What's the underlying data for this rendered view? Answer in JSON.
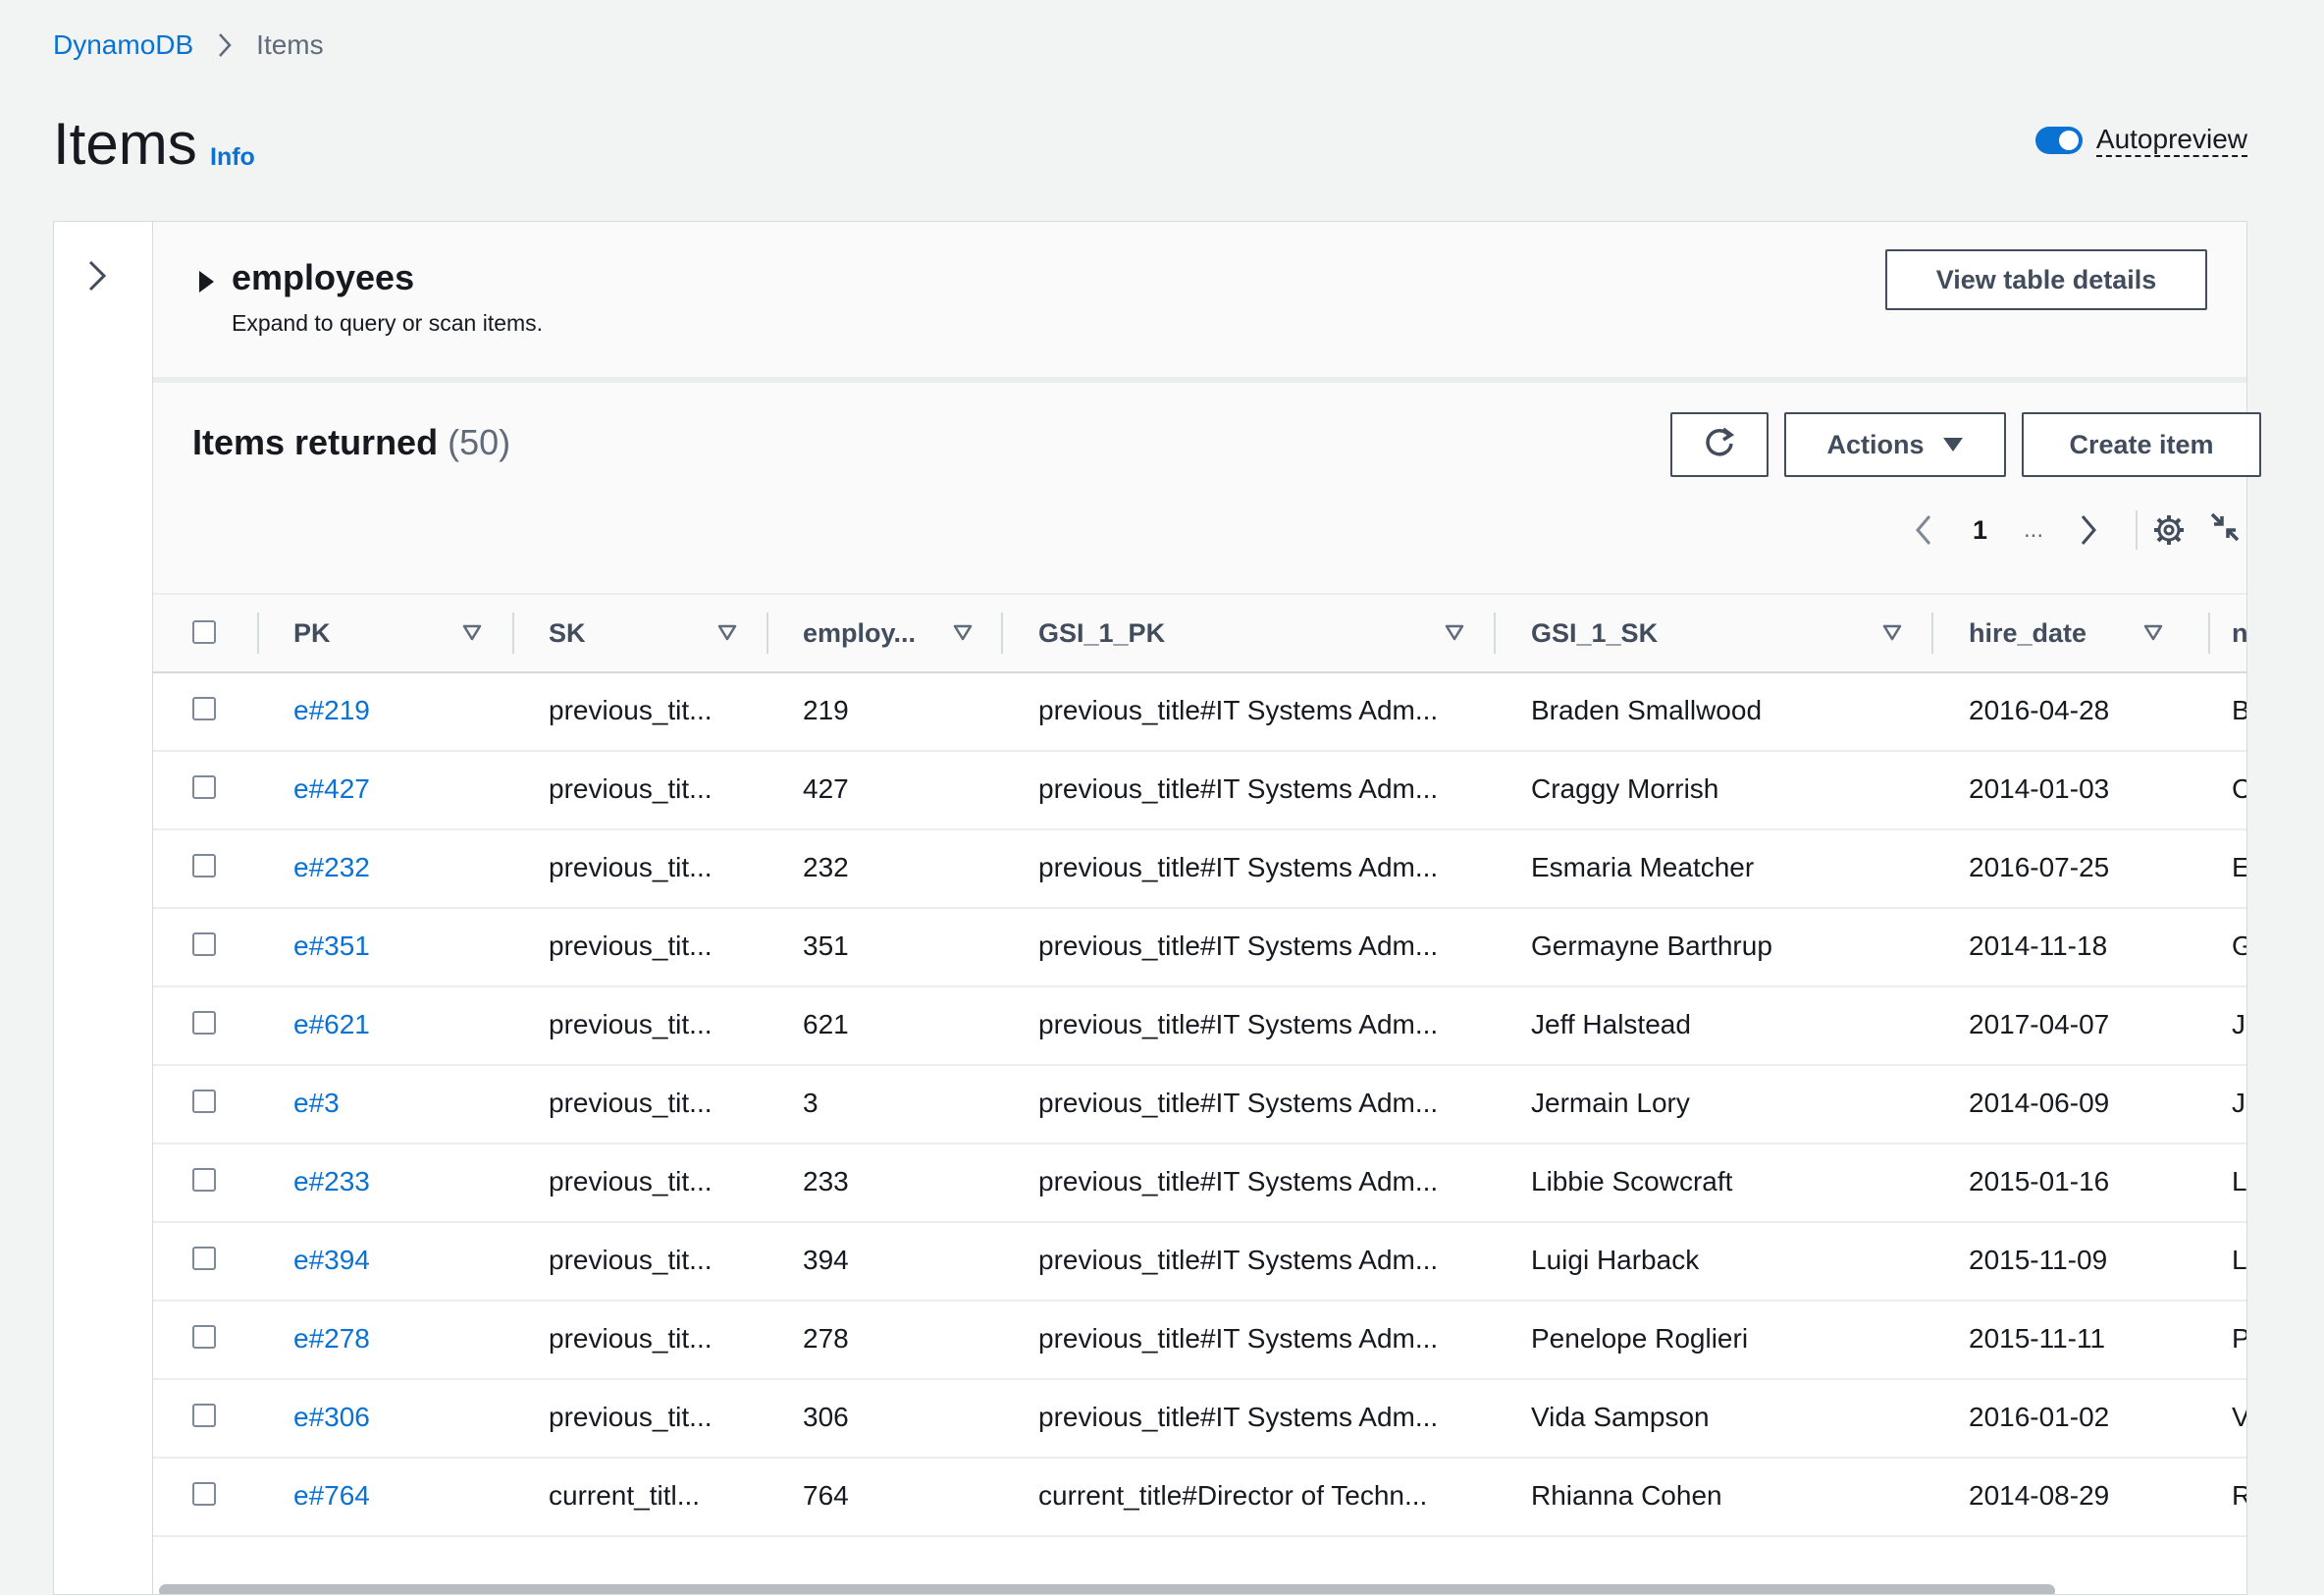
{
  "breadcrumb": {
    "root": "DynamoDB",
    "current": "Items"
  },
  "page": {
    "title": "Items",
    "info": "Info"
  },
  "autopreview": {
    "label": "Autopreview",
    "enabled": true
  },
  "table_section": {
    "name": "employees",
    "description": "Expand to query or scan items.",
    "view_details_label": "View table details"
  },
  "results": {
    "title": "Items returned",
    "count": "(50)",
    "actions_label": "Actions",
    "create_label": "Create item",
    "page": "1",
    "ellipsis": "..."
  },
  "columns": [
    "PK",
    "SK",
    "employ...",
    "GSI_1_PK",
    "GSI_1_SK",
    "hire_date",
    "n"
  ],
  "rows": [
    [
      "e#219",
      "previous_tit...",
      "219",
      "previous_title#IT Systems Adm...",
      "Braden Smallwood",
      "2016-04-28",
      "B"
    ],
    [
      "e#427",
      "previous_tit...",
      "427",
      "previous_title#IT Systems Adm...",
      "Craggy Morrish",
      "2014-01-03",
      "C"
    ],
    [
      "e#232",
      "previous_tit...",
      "232",
      "previous_title#IT Systems Adm...",
      "Esmaria Meatcher",
      "2016-07-25",
      "E"
    ],
    [
      "e#351",
      "previous_tit...",
      "351",
      "previous_title#IT Systems Adm...",
      "Germayne Barthrup",
      "2014-11-18",
      "G"
    ],
    [
      "e#621",
      "previous_tit...",
      "621",
      "previous_title#IT Systems Adm...",
      "Jeff Halstead",
      "2017-04-07",
      "Je"
    ],
    [
      "e#3",
      "previous_tit...",
      "3",
      "previous_title#IT Systems Adm...",
      "Jermain Lory",
      "2014-06-09",
      "Je"
    ],
    [
      "e#233",
      "previous_tit...",
      "233",
      "previous_title#IT Systems Adm...",
      "Libbie Scowcraft",
      "2015-01-16",
      "L"
    ],
    [
      "e#394",
      "previous_tit...",
      "394",
      "previous_title#IT Systems Adm...",
      "Luigi Harback",
      "2015-11-09",
      "L"
    ],
    [
      "e#278",
      "previous_tit...",
      "278",
      "previous_title#IT Systems Adm...",
      "Penelope Roglieri",
      "2015-11-11",
      "P"
    ],
    [
      "e#306",
      "previous_tit...",
      "306",
      "previous_title#IT Systems Adm...",
      "Vida Sampson",
      "2016-01-02",
      "V"
    ],
    [
      "e#764",
      "current_titl...",
      "764",
      "current_title#Director of Techn...",
      "Rhianna Cohen",
      "2014-08-29",
      "R"
    ]
  ],
  "colors": {
    "link": "#0972d3",
    "text": "#16191f",
    "border": "#d5dbdb",
    "button": "#414d5c"
  },
  "icons": [
    "chevron-right-icon",
    "caret-right-icon",
    "refresh-icon",
    "caret-down-icon",
    "chevron-left-icon",
    "gear-icon",
    "collapse-icon",
    "sort-icon"
  ]
}
